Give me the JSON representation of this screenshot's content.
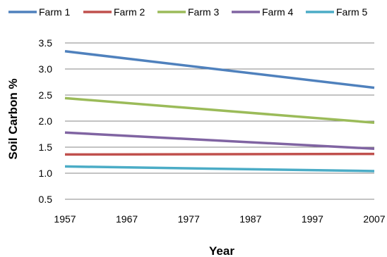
{
  "chart_data": {
    "type": "line",
    "title": "",
    "xlabel": "Year",
    "ylabel": "Soil Carbon %",
    "x": [
      1957,
      2007
    ],
    "xticks": [
      "1957",
      "1967",
      "1977",
      "1987",
      "1997",
      "2007"
    ],
    "yticks": [
      "0.5",
      "1.0",
      "1.5",
      "2.0",
      "2.5",
      "3.0",
      "3.5"
    ],
    "xlim": [
      1957,
      2007
    ],
    "ylim": [
      0.5,
      3.5
    ],
    "grid": "horizontal",
    "legend": "top",
    "series": [
      {
        "name": "Farm 1",
        "color": "#4F81BD",
        "values": [
          3.34,
          2.64
        ]
      },
      {
        "name": "Farm 2",
        "color": "#C0504D",
        "values": [
          1.36,
          1.37
        ]
      },
      {
        "name": "Farm 3",
        "color": "#9BBB59",
        "values": [
          2.44,
          1.97
        ]
      },
      {
        "name": "Farm 4",
        "color": "#8064A2",
        "values": [
          1.78,
          1.47
        ]
      },
      {
        "name": "Farm 5",
        "color": "#4BACC6",
        "values": [
          1.13,
          1.04
        ]
      }
    ]
  }
}
